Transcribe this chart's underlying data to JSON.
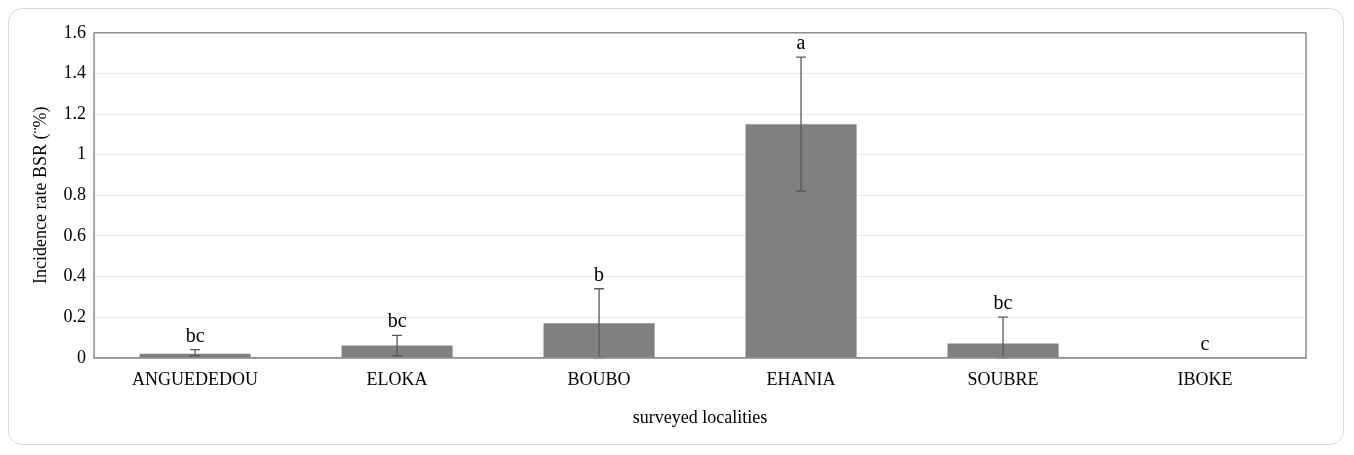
{
  "chart_data": {
    "type": "bar",
    "xlabel": "surveyed localities",
    "ylabel": "Incidence rate BSR (¨%)",
    "categories": [
      "ANGUEDEDOU",
      "ELOKA",
      "BOUBO",
      "EHANIA",
      "SOUBRE",
      "IBOKE"
    ],
    "series": [
      {
        "color": "#808080",
        "values": [
          0.02,
          0.06,
          0.17,
          1.15,
          0.07,
          0
        ],
        "errors": [
          [
            0.01,
            0.04
          ],
          [
            0.01,
            0.11
          ],
          [
            0,
            0.34
          ],
          [
            0.82,
            1.48
          ],
          [
            0,
            0.2
          ],
          null
        ]
      }
    ],
    "ylim": [
      0,
      1.6
    ],
    "yticks": [
      0,
      0.2,
      0.4,
      0.6,
      0.8,
      1,
      1.2,
      1.4,
      1.6
    ],
    "grid": "y",
    "legend": false,
    "annotations": [
      {
        "text": "bc",
        "x": "ANGUEDEDOU",
        "y": 0.04
      },
      {
        "text": "bc",
        "x": "ELOKA",
        "y": 0.11
      },
      {
        "text": "b",
        "x": "BOUBO",
        "y": 0.34
      },
      {
        "text": "a",
        "x": "EHANIA",
        "y": 1.48
      },
      {
        "text": "bc",
        "x": "SOUBRE",
        "y": 0.2
      },
      {
        "text": "c",
        "x": "IBOKE",
        "y": 0
      }
    ]
  }
}
